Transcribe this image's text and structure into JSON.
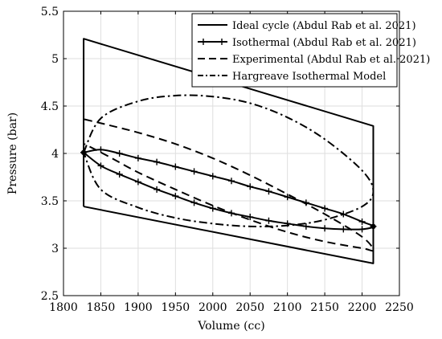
{
  "chart_data": {
    "type": "line",
    "title": "",
    "xlabel": "Volume (cc)",
    "ylabel": "Pressure (bar)",
    "xlim": [
      1800,
      2250
    ],
    "ylim": [
      2.5,
      5.5
    ],
    "xticks": [
      1800,
      1850,
      1900,
      1950,
      2000,
      2050,
      2100,
      2150,
      2200,
      2250
    ],
    "yticks": [
      2.5,
      3,
      3.5,
      4,
      4.5,
      5,
      5.5
    ],
    "xtick_labels": [
      "1800",
      "1850",
      "1900",
      "1950",
      "2000",
      "2050",
      "2100",
      "2150",
      "2200",
      "2250"
    ],
    "ytick_labels": [
      "2.5",
      "3",
      "3.5",
      "4",
      "4.5",
      "5",
      "5.5"
    ],
    "grid": true,
    "legend_position": "top-right",
    "series": [
      {
        "name": "Ideal cycle (Abdul Rab et al. 2021)",
        "style": "solid",
        "x": [
          1827,
          1827,
          2215,
          2215,
          1827
        ],
        "y": [
          3.44,
          5.21,
          4.29,
          2.84,
          3.44
        ]
      },
      {
        "name": "Isothermal  (Abdul Rab et al. 2021)",
        "style": "solid-plus",
        "x": [
          1827,
          1850,
          1875,
          1900,
          1925,
          1950,
          1975,
          2000,
          2025,
          2050,
          2075,
          2100,
          2125,
          2150,
          2175,
          2200,
          2215,
          2200,
          2175,
          2150,
          2125,
          2100,
          2075,
          2050,
          2025,
          2000,
          1975,
          1950,
          1925,
          1900,
          1875,
          1850,
          1827
        ],
        "y": [
          4.01,
          4.04,
          4.0,
          3.95,
          3.91,
          3.86,
          3.81,
          3.76,
          3.71,
          3.65,
          3.6,
          3.54,
          3.48,
          3.42,
          3.36,
          3.28,
          3.23,
          3.2,
          3.2,
          3.21,
          3.23,
          3.26,
          3.29,
          3.33,
          3.37,
          3.42,
          3.48,
          3.55,
          3.62,
          3.7,
          3.78,
          3.87,
          4.01
        ]
      },
      {
        "name": "Experimental (Abdul Rab et al. 2021)",
        "style": "dashed",
        "x": [
          1828,
          1860,
          1900,
          1950,
          2000,
          2050,
          2100,
          2150,
          2200,
          2215,
          2200,
          2150,
          2100,
          2050,
          2000,
          1950,
          1900,
          1860,
          1828
        ],
        "y": [
          4.36,
          4.3,
          4.22,
          4.1,
          3.95,
          3.77,
          3.57,
          3.36,
          3.12,
          2.98,
          3.0,
          3.07,
          3.17,
          3.3,
          3.45,
          3.62,
          3.8,
          3.97,
          4.1
        ]
      },
      {
        "name": "Hargreave Isothermal Model",
        "style": "dashdot",
        "x": [
          1827,
          1850,
          1900,
          1950,
          2000,
          2050,
          2100,
          2150,
          2200,
          2215,
          2200,
          2150,
          2100,
          2050,
          2000,
          1950,
          1900,
          1850,
          1827
        ],
        "y": [
          4.01,
          4.37,
          4.55,
          4.61,
          4.6,
          4.53,
          4.38,
          4.15,
          3.82,
          3.6,
          3.44,
          3.3,
          3.24,
          3.23,
          3.26,
          3.32,
          3.43,
          3.62,
          4.01
        ]
      }
    ]
  }
}
